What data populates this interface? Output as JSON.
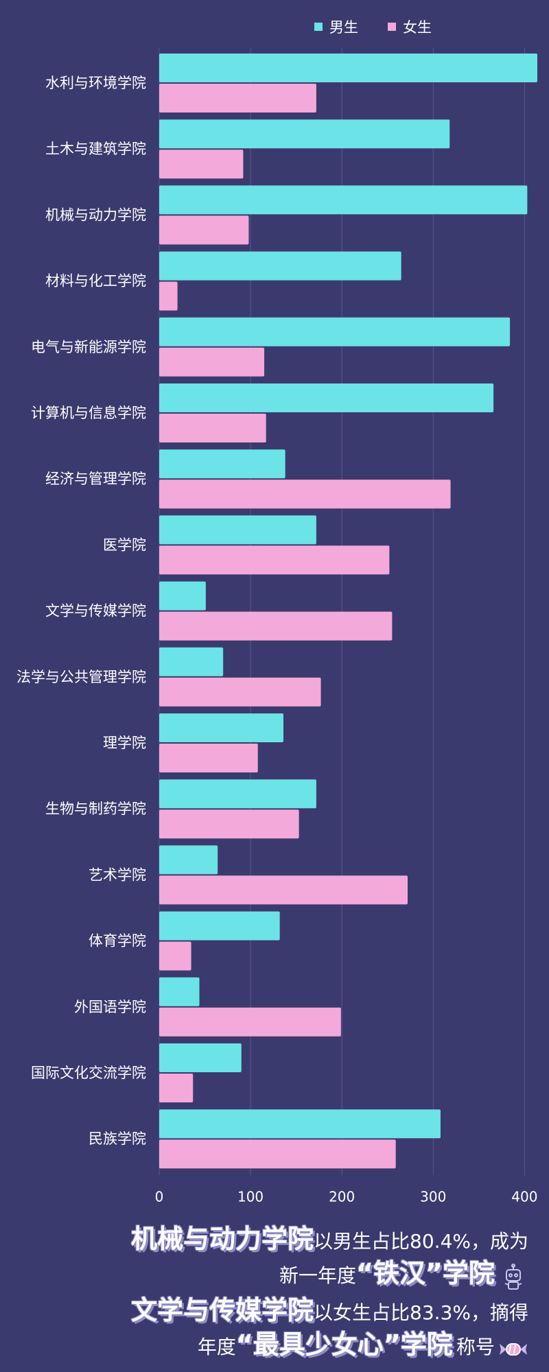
{
  "colors": {
    "background": "#3b3a6e",
    "male": "#6ce3e6",
    "female": "#f3a9d9",
    "grid": "#57568a",
    "text": "#ffffff"
  },
  "chart_data": {
    "type": "bar",
    "orientation": "horizontal",
    "categories": [
      "水利与环境学院",
      "土木与建筑学院",
      "机械与动力学院",
      "材料与化工学院",
      "电气与新能源学院",
      "计算机与信息学院",
      "经济与管理学院",
      "医学院",
      "文学与传媒学院",
      "法学与公共管理学院",
      "理学院",
      "生物与制药学院",
      "艺术学院",
      "体育学院",
      "外国语学院",
      "国际文化交流学院",
      "民族学院"
    ],
    "series": [
      {
        "name": "男生",
        "values": [
          414,
          318,
          403,
          265,
          384,
          366,
          138,
          172,
          51,
          70,
          136,
          172,
          64,
          132,
          44,
          90,
          308
        ]
      },
      {
        "name": "女生",
        "values": [
          172,
          92,
          98,
          20,
          115,
          117,
          319,
          252,
          255,
          177,
          108,
          153,
          272,
          35,
          199,
          37,
          259
        ]
      }
    ],
    "xticks": [
      "0",
      "100",
      "200",
      "300",
      "400"
    ],
    "xlim": [
      0,
      414
    ],
    "grid": "vertical",
    "legend": "top"
  },
  "footer": {
    "line1_big": "机械与动力学院",
    "line1_small": "以男生占比80.4%，成为",
    "line2_small": "新一年度",
    "line2_big": "“铁汉”学院",
    "line3_big": "文学与传媒学院",
    "line3_small": "以女生占比83.3%，摘得",
    "line4_small_a": "年度",
    "line4_big": "“最具少女心”学院",
    "line4_small_b": "称号",
    "deco_robot_icon": "robot-icon",
    "deco_candy_icon": "candy-icon"
  }
}
